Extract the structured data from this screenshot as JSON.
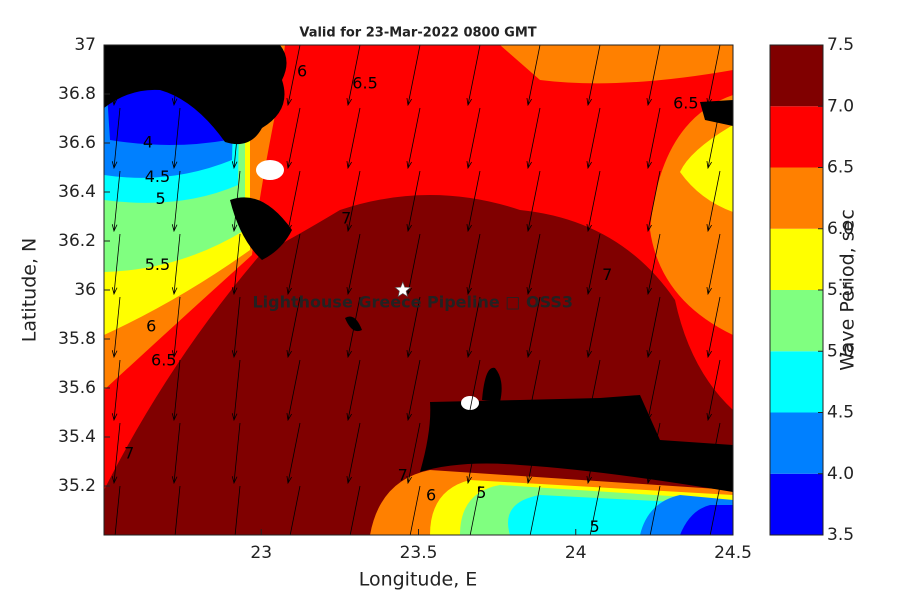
{
  "chart_data": {
    "type": "contour-map",
    "title": "Valid for 23-Mar-2022 0800 GMT",
    "xlabel": "Longitude, E",
    "ylabel": "Latitude, N",
    "xlim": [
      22.5,
      24.5
    ],
    "ylim": [
      35,
      37
    ],
    "xticks": [
      23,
      23.5,
      24,
      24.5
    ],
    "yticks": [
      35.2,
      35.4,
      35.6,
      35.8,
      36,
      36.2,
      36.4,
      36.6,
      36.8,
      37
    ],
    "colorbar": {
      "label": "Wave Period, sec",
      "lim": [
        3.5,
        7.5
      ],
      "ticks": [
        {
          "value": 3.5,
          "label": "3.5"
        },
        {
          "value": 4,
          "label": "4.0"
        },
        {
          "value": 4.5,
          "label": "4.5"
        },
        {
          "value": 5,
          "label": "5.0"
        },
        {
          "value": 5.5,
          "label": "5.5"
        },
        {
          "value": 6,
          "label": "6.0"
        },
        {
          "value": 6.5,
          "label": "6.5"
        },
        {
          "value": 7,
          "label": "7.0"
        },
        {
          "value": 7.5,
          "label": "7.5"
        }
      ],
      "colors": [
        "#0000ff",
        "#0080ff",
        "#00ffff",
        "#80ff80",
        "#ffff00",
        "#ff8000",
        "#ff0000",
        "#800000"
      ]
    },
    "contour_labels": [
      {
        "x": 23.13,
        "y": 36.89,
        "value": 6
      },
      {
        "x": 23.33,
        "y": 36.84,
        "value": 6.5
      },
      {
        "x": 24.35,
        "y": 36.76,
        "value": 6.5
      },
      {
        "x": 22.64,
        "y": 36.6,
        "value": 4
      },
      {
        "x": 22.67,
        "y": 36.46,
        "value": 4.5
      },
      {
        "x": 22.68,
        "y": 36.37,
        "value": 5
      },
      {
        "x": 22.67,
        "y": 36.1,
        "value": 5.5
      },
      {
        "x": 22.65,
        "y": 35.85,
        "value": 6
      },
      {
        "x": 22.69,
        "y": 35.71,
        "value": 6.5
      },
      {
        "x": 22.58,
        "y": 35.33,
        "value": 7
      },
      {
        "x": 23.27,
        "y": 36.29,
        "value": 7
      },
      {
        "x": 24.1,
        "y": 36.06,
        "value": 7
      },
      {
        "x": 23.45,
        "y": 35.24,
        "value": 7
      },
      {
        "x": 23.54,
        "y": 35.16,
        "value": 6
      },
      {
        "x": 23.7,
        "y": 35.17,
        "value": 5
      },
      {
        "x": 24.06,
        "y": 35.03,
        "value": 5
      }
    ],
    "station": {
      "x": 23.45,
      "y": 36,
      "label": "Lighthouse Greece Pipeline □ OSS3"
    }
  }
}
